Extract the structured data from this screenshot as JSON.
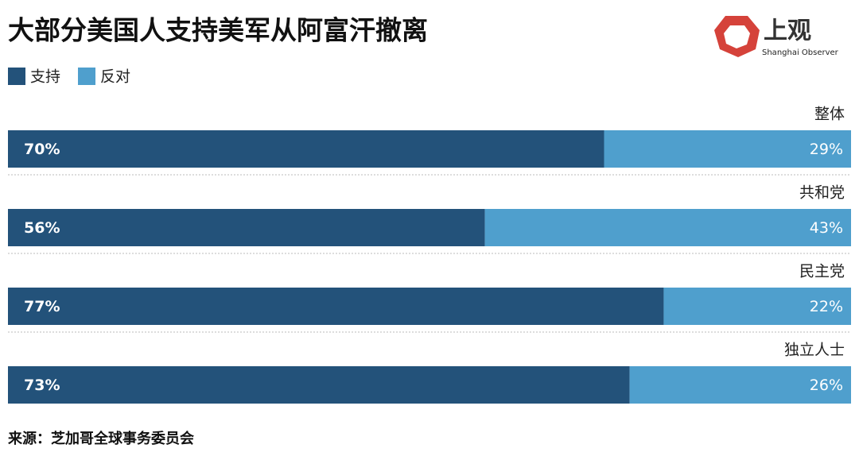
{
  "chart_data": {
    "type": "stacked-bar-horizontal",
    "title": "大部分美国人支持美军从阿富汗撤离",
    "categories": [
      "整体",
      "共和党",
      "民主党",
      "独立人士"
    ],
    "series": [
      {
        "name": "支持",
        "color": "#23527a",
        "values": [
          70,
          56,
          77,
          73
        ],
        "value_labels": [
          "70%",
          "56%",
          "77%",
          "73%"
        ]
      },
      {
        "name": "反对",
        "color": "#4f9fcd",
        "values": [
          29,
          43,
          22,
          26
        ],
        "value_labels": [
          "29%",
          "43%",
          "22%",
          "26%"
        ]
      }
    ],
    "legend": "top-left",
    "source": "来源：芝加哥全球事务委员会"
  },
  "logo": {
    "name": "上观",
    "subtitle": "Shanghai Observer"
  }
}
